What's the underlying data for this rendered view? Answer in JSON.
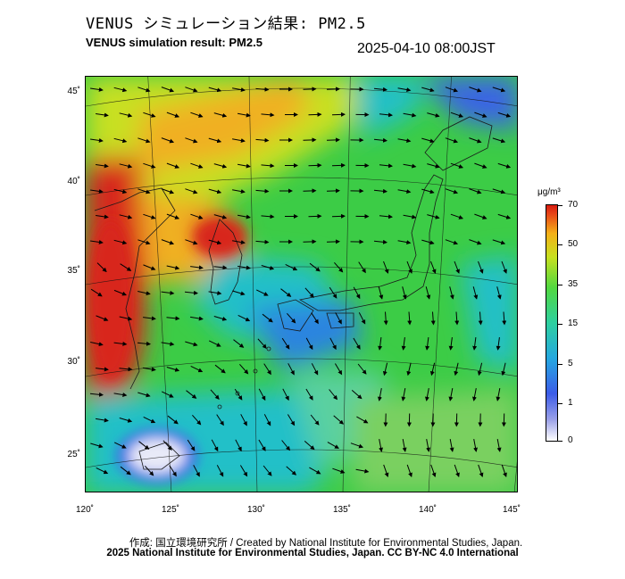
{
  "header": {
    "title_jp": "VENUS シミュレーション結果: PM2.5",
    "title_en": "VENUS simulation result: PM2.5",
    "timestamp": "2025-04-10 08:00JST"
  },
  "map": {
    "region": "East Asia (Japan, Korea, East China Sea)",
    "variable": "PM2.5",
    "lat_labels": [
      "45˚",
      "40˚",
      "35˚",
      "30˚",
      "25˚"
    ],
    "lon_labels": [
      "120˚",
      "125˚",
      "130˚",
      "135˚",
      "140˚",
      "145˚"
    ],
    "lat_values": [
      45,
      40,
      35,
      30,
      25
    ],
    "lon_values": [
      120,
      125,
      130,
      135,
      140,
      145
    ],
    "field_colors": {
      "very_low": "#e8eaf8",
      "low": "#3a64e6",
      "moderate": "#22c0c8",
      "medium": "#3ccc46",
      "high": "#f0b020",
      "very_high": "#d8261a"
    }
  },
  "colorbar": {
    "unit": "μg/m³",
    "ticks": [
      "70",
      "50",
      "35",
      "15",
      "5",
      "1",
      "0"
    ],
    "tick_values": [
      70,
      50,
      35,
      15,
      5,
      1,
      0
    ]
  },
  "footer": {
    "credit_line1": "作成: 国立環境研究所 / Created by National Institute for Environmental Studies, Japan.",
    "credit_line2": "2025 National Institute for Environmental Studies, Japan. CC BY-NC 4.0 International"
  }
}
